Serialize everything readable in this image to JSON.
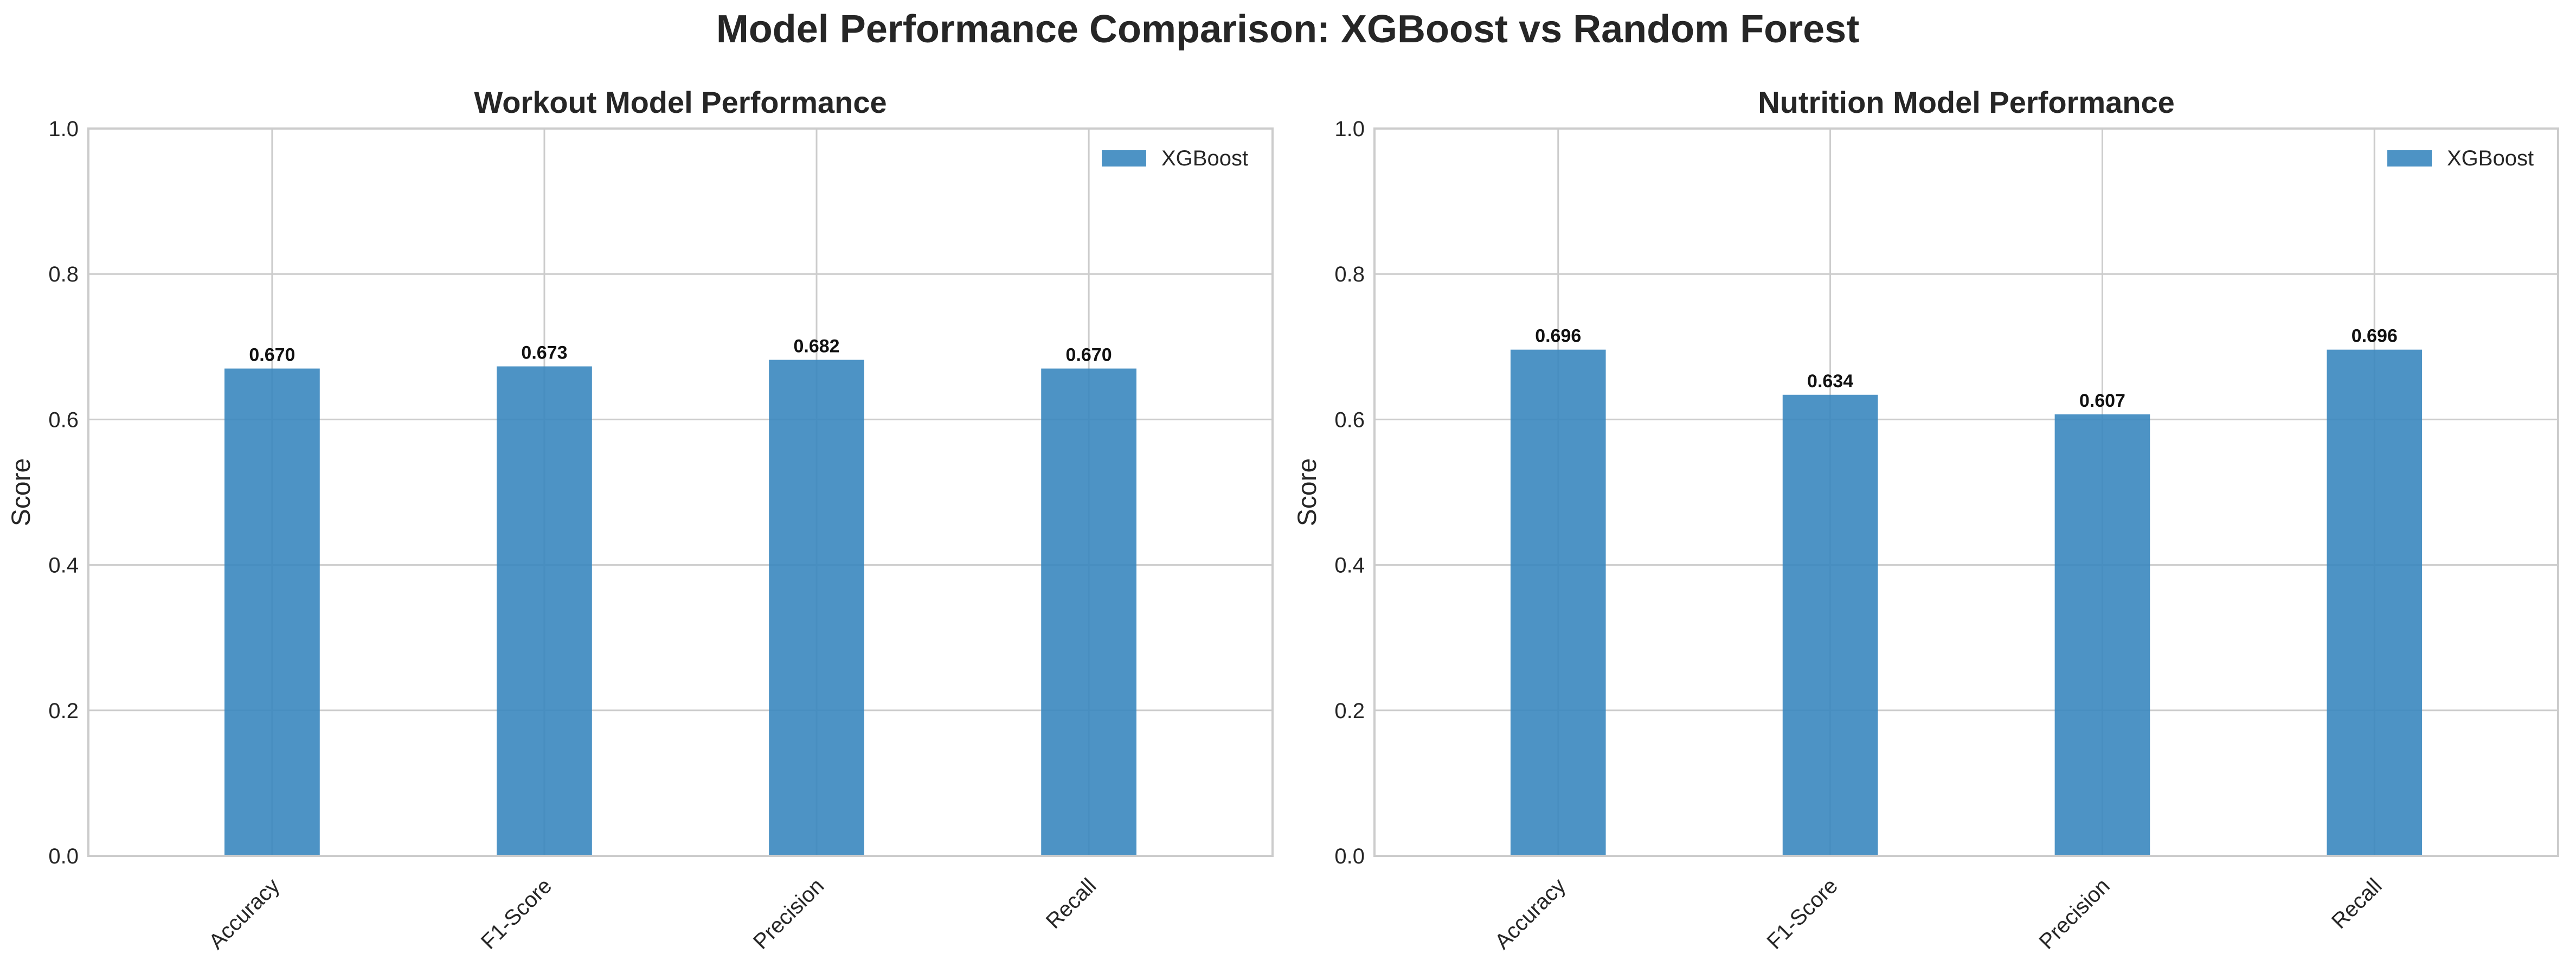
{
  "title": "Model Performance Comparison: XGBoost vs Random Forest",
  "colors": {
    "bar": "#3a87bf",
    "grid": "#cccccc",
    "spine": "#cccccc",
    "text": "#262626"
  },
  "chart_data": [
    {
      "type": "bar",
      "title": "Workout Model Performance",
      "ylabel": "Score",
      "xlabel": "",
      "ylim": [
        0,
        1.0
      ],
      "yticks": [
        "0.0",
        "0.2",
        "0.4",
        "0.6",
        "0.8",
        "1.0"
      ],
      "categories": [
        "Accuracy",
        "F1-Score",
        "Precision",
        "Recall"
      ],
      "series": [
        {
          "name": "XGBoost",
          "values": [
            0.67,
            0.673,
            0.682,
            0.67
          ],
          "labels": [
            "0.670",
            "0.673",
            "0.682",
            "0.670"
          ]
        }
      ],
      "legend": "top-right",
      "grid": true
    },
    {
      "type": "bar",
      "title": "Nutrition Model Performance",
      "ylabel": "Score",
      "xlabel": "",
      "ylim": [
        0,
        1.0
      ],
      "yticks": [
        "0.0",
        "0.2",
        "0.4",
        "0.6",
        "0.8",
        "1.0"
      ],
      "categories": [
        "Accuracy",
        "F1-Score",
        "Precision",
        "Recall"
      ],
      "series": [
        {
          "name": "XGBoost",
          "values": [
            0.696,
            0.634,
            0.607,
            0.696
          ],
          "labels": [
            "0.696",
            "0.634",
            "0.607",
            "0.696"
          ]
        }
      ],
      "legend": "top-right",
      "grid": true
    }
  ]
}
